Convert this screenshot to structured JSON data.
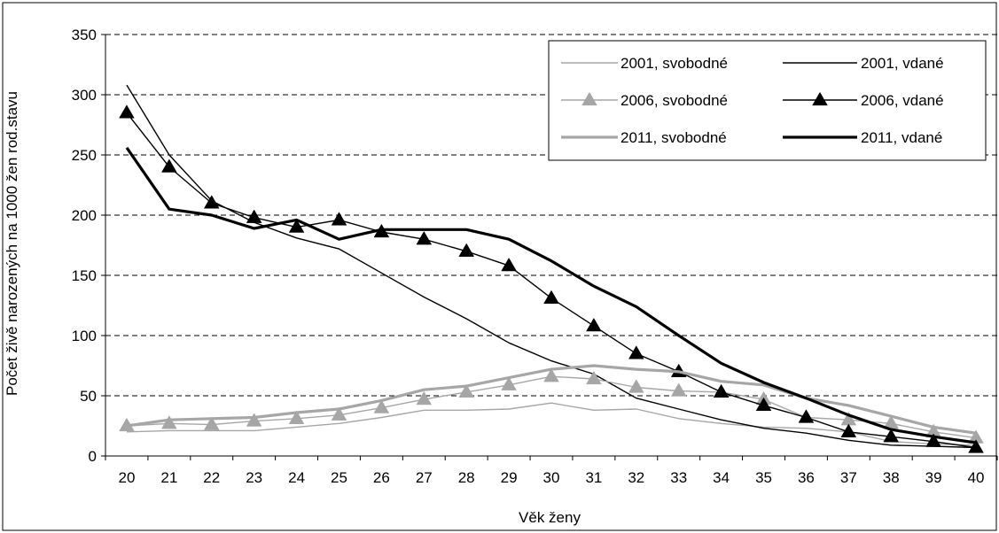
{
  "chart_data": {
    "type": "line",
    "xlabel": "Věk ženy",
    "ylabel": "Počet živě narozených na 1000 žen rod.stavu",
    "ylim": [
      0,
      350
    ],
    "yticks": [
      0,
      50,
      100,
      150,
      200,
      250,
      300,
      350
    ],
    "x": [
      20,
      21,
      22,
      23,
      24,
      25,
      26,
      27,
      28,
      29,
      30,
      31,
      32,
      33,
      34,
      35,
      36,
      37,
      38,
      39,
      40
    ],
    "grid": "horizontal dashed",
    "legend_position": "top-right",
    "series": [
      {
        "name": "2001, svobodné",
        "color": "#a6a6a6",
        "style": "thin",
        "marker": "none",
        "values": [
          20,
          21,
          21,
          21,
          24,
          27,
          32,
          38,
          38,
          39,
          44,
          38,
          39,
          31,
          27,
          24,
          23,
          20,
          12,
          10,
          9
        ]
      },
      {
        "name": "2001, vdané",
        "color": "#000000",
        "style": "thin",
        "marker": "none",
        "values": [
          308,
          250,
          212,
          194,
          181,
          172,
          152,
          132,
          114,
          94,
          79,
          68,
          48,
          39,
          30,
          23,
          19,
          13,
          9,
          8,
          7
        ]
      },
      {
        "name": "2006, svobodné",
        "color": "#a6a6a6",
        "style": "thin",
        "marker": "triangle",
        "values": [
          25,
          27,
          26,
          29,
          31,
          34,
          40,
          47,
          53,
          59,
          66,
          64,
          57,
          54,
          53,
          47,
          32,
          30,
          27,
          20,
          15
        ]
      },
      {
        "name": "2006, vdané",
        "color": "#000000",
        "style": "thin",
        "marker": "triangle",
        "values": [
          285,
          240,
          210,
          198,
          190,
          196,
          186,
          180,
          170,
          158,
          131,
          108,
          85,
          70,
          53,
          42,
          32,
          20,
          16,
          12,
          7
        ]
      },
      {
        "name": "2011, svobodné",
        "color": "#a6a6a6",
        "style": "thick",
        "marker": "none",
        "values": [
          25,
          30,
          31,
          32,
          36,
          39,
          46,
          55,
          58,
          65,
          72,
          75,
          72,
          70,
          62,
          59,
          48,
          42,
          33,
          24,
          19
        ]
      },
      {
        "name": "2011, vdané",
        "color": "#000000",
        "style": "thick",
        "marker": "none",
        "values": [
          256,
          205,
          200,
          189,
          196,
          180,
          188,
          188,
          188,
          180,
          162,
          141,
          124,
          100,
          77,
          61,
          48,
          34,
          22,
          16,
          11
        ]
      }
    ]
  }
}
